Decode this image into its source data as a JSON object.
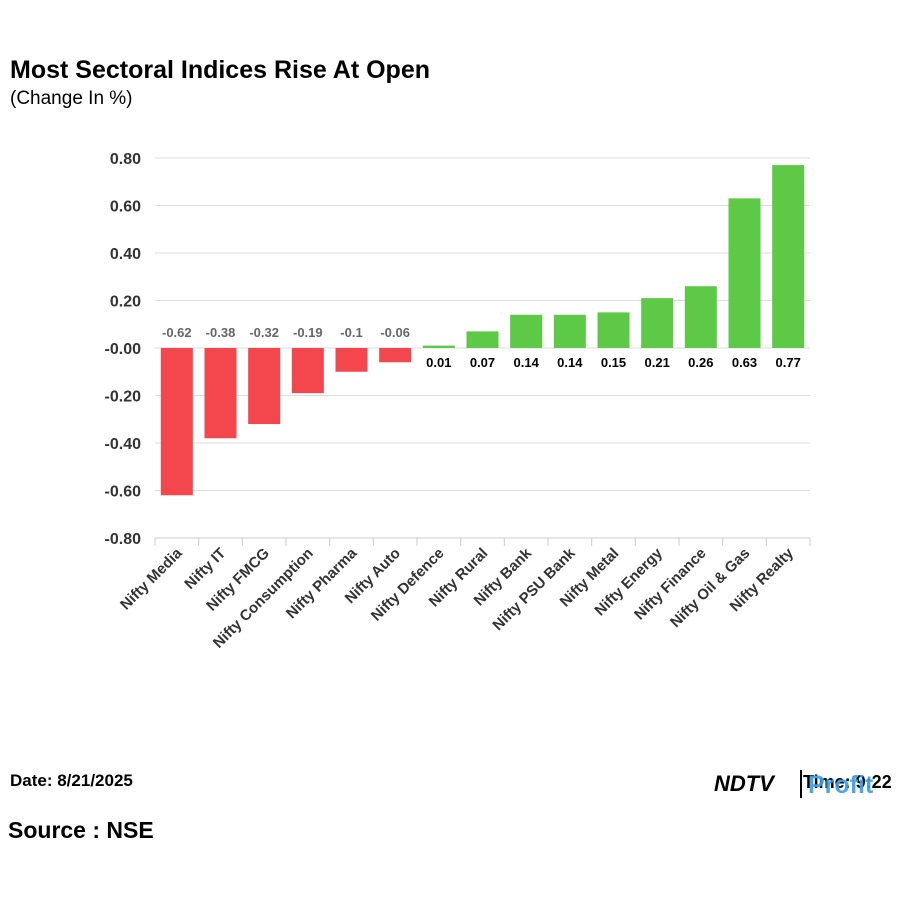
{
  "chart_data": {
    "type": "bar",
    "title": "Most Sectoral Indices Rise At Open",
    "subtitle": "(Change In %)",
    "categories": [
      "Nifty Media",
      "Nifty IT",
      "Nifty FMCG",
      "Nifty Consumption",
      "Nifty Pharma",
      "Nifty Auto",
      "Nifty Defence",
      "Nifty Rural",
      "Nifty Bank",
      "Nifty PSU Bank",
      "Nifty Metal",
      "Nifty Energy",
      "Nifty Finance",
      "Nifty Oil & Gas",
      "Nifty Realty"
    ],
    "values": [
      -0.62,
      -0.38,
      -0.32,
      -0.19,
      -0.1,
      -0.06,
      0.01,
      0.07,
      0.14,
      0.14,
      0.15,
      0.21,
      0.26,
      0.63,
      0.77
    ],
    "positive_color": "#5dc947",
    "negative_color": "#f4464d",
    "ylim": [
      -0.8,
      0.8
    ],
    "yticks": [
      {
        "value": -0.8,
        "label": "-0.80"
      },
      {
        "value": -0.6,
        "label": "-0.60"
      },
      {
        "value": -0.4,
        "label": "-0.40"
      },
      {
        "value": -0.2,
        "label": "-0.20"
      },
      {
        "value": 0,
        "label": "-0.00"
      },
      {
        "value": 0.2,
        "label": "0.20"
      },
      {
        "value": 0.4,
        "label": "0.40"
      },
      {
        "value": 0.6,
        "label": "0.60"
      },
      {
        "value": 0.8,
        "label": "0.80"
      }
    ],
    "grid": true,
    "date": "Date: 8/21/2025",
    "source": "Source : NSE",
    "logo": {
      "brand": "NDTV",
      "product": "Profit",
      "time": "Time: 9:22"
    }
  }
}
